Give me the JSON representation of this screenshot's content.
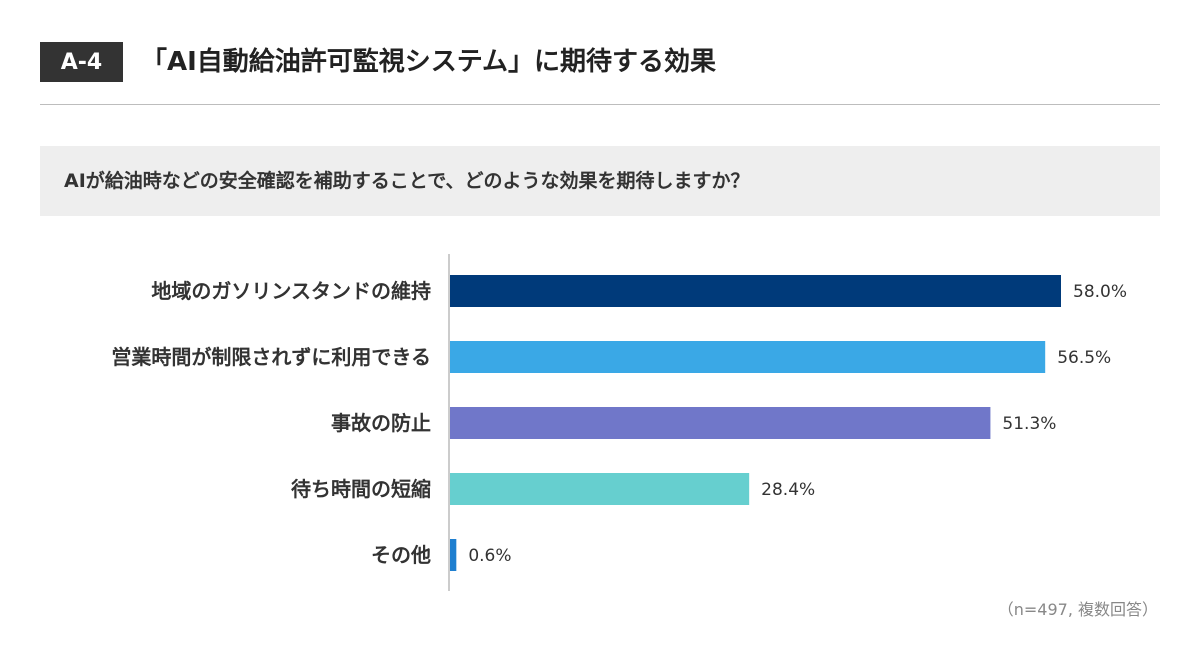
{
  "header": {
    "badge": "A-4",
    "title": "「AI自動給油許可監視システム」に期待する効果"
  },
  "question": "AIが給油時などの安全確認を補助することで、どのような効果を期待しますか？",
  "note": "（n=497, 複数回答）",
  "chart_data": {
    "type": "bar",
    "orientation": "horizontal",
    "categories": [
      "地域のガソリンスタンドの維持",
      "営業時間が制限されずに利用できる",
      "事故の防止",
      "待ち時間の短縮",
      "その他"
    ],
    "values": [
      58.0,
      56.5,
      51.3,
      28.4,
      0.6
    ],
    "value_labels": [
      "58.0%",
      "56.5%",
      "51.3%",
      "28.4%",
      "0.6%"
    ],
    "colors": [
      "#003a7a",
      "#3aa8e6",
      "#7077c9",
      "#66cfcf",
      "#1e7fd0"
    ],
    "xlim": [
      0,
      60
    ],
    "grid": false,
    "legend": "none"
  }
}
